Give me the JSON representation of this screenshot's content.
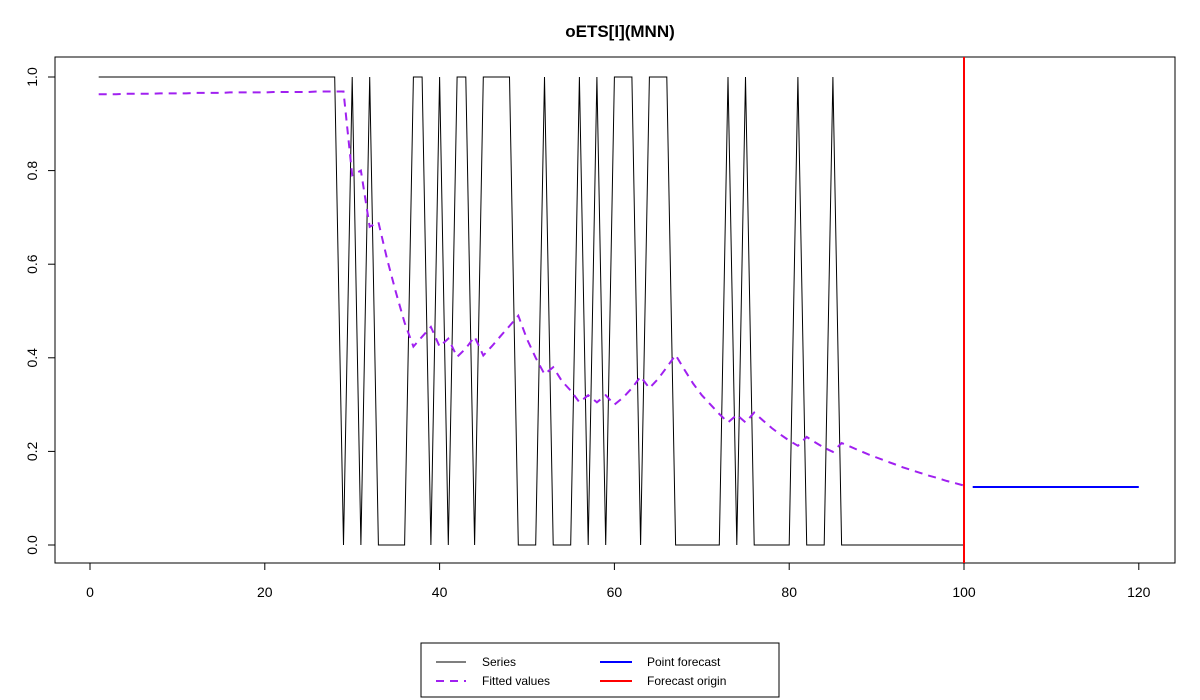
{
  "chart_data": {
    "type": "line",
    "title": "oETS[I](MNN)",
    "xlabel": "",
    "ylabel": "",
    "xlim": [
      -1,
      126
    ],
    "ylim": [
      -0.02,
      1.02
    ],
    "x_ticks": [
      0,
      20,
      40,
      60,
      80,
      100,
      120
    ],
    "y_ticks": [
      0.0,
      0.2,
      0.4,
      0.6,
      0.8,
      1.0
    ],
    "x_tick_labels": [
      "0",
      "20",
      "40",
      "60",
      "80",
      "100",
      "120"
    ],
    "y_tick_labels": [
      "0.0",
      "0.2",
      "0.4",
      "0.6",
      "0.8",
      "1.0"
    ],
    "grid": false,
    "legend_position": "bottom-center",
    "series": [
      {
        "name": "Series",
        "color": "#000000",
        "style": "solid",
        "x_start": 1,
        "values": [
          1,
          1,
          1,
          1,
          1,
          1,
          1,
          1,
          1,
          1,
          1,
          1,
          1,
          1,
          1,
          1,
          1,
          1,
          1,
          1,
          1,
          1,
          1,
          1,
          1,
          1,
          1,
          1,
          0,
          1,
          0,
          1,
          0,
          0,
          0,
          0,
          1,
          1,
          0,
          1,
          0,
          1,
          1,
          0,
          1,
          1,
          1,
          1,
          0,
          0,
          0,
          1,
          0,
          0,
          0,
          1,
          0,
          1,
          0,
          1,
          1,
          1,
          0,
          1,
          1,
          1,
          0,
          0,
          0,
          0,
          0,
          0,
          1,
          0,
          1,
          0,
          0,
          0,
          0,
          0,
          1,
          0,
          0,
          0,
          1,
          0,
          0,
          0,
          0,
          0,
          0,
          0,
          0,
          0,
          0,
          0,
          0,
          0,
          0,
          0
        ]
      },
      {
        "name": "Fitted values",
        "color": "#a020f0",
        "style": "dashed",
        "x_start": 1,
        "values": [
          0.963,
          0.963,
          0.963,
          0.964,
          0.964,
          0.964,
          0.964,
          0.965,
          0.965,
          0.965,
          0.965,
          0.966,
          0.966,
          0.966,
          0.966,
          0.967,
          0.967,
          0.967,
          0.967,
          0.967,
          0.968,
          0.968,
          0.968,
          0.968,
          0.968,
          0.969,
          0.969,
          0.969,
          0.969,
          0.79,
          0.8,
          0.68,
          0.69,
          0.61,
          0.54,
          0.475,
          0.424,
          0.445,
          0.466,
          0.424,
          0.441,
          0.402,
          0.42,
          0.445,
          0.405,
          0.425,
          0.447,
          0.468,
          0.49,
          0.44,
          0.4,
          0.365,
          0.38,
          0.35,
          0.33,
          0.305,
          0.32,
          0.305,
          0.32,
          0.3,
          0.315,
          0.335,
          0.36,
          0.335,
          0.355,
          0.38,
          0.406,
          0.375,
          0.345,
          0.32,
          0.3,
          0.28,
          0.262,
          0.278,
          0.262,
          0.283,
          0.266,
          0.25,
          0.236,
          0.223,
          0.212,
          0.231,
          0.219,
          0.208,
          0.199,
          0.218,
          0.21,
          0.202,
          0.194,
          0.187,
          0.18,
          0.173,
          0.166,
          0.16,
          0.154,
          0.148,
          0.143,
          0.137,
          0.132,
          0.127
        ]
      },
      {
        "name": "Point forecast",
        "color": "#0000ff",
        "style": "solid",
        "x": [
          101,
          120
        ],
        "values": [
          0.124,
          0.124
        ]
      }
    ],
    "vlines": [
      {
        "name": "Forecast origin",
        "x": 100,
        "color": "#ff0000"
      }
    ],
    "legend": [
      {
        "label": "Series",
        "color": "#555555",
        "style": "solid"
      },
      {
        "label": "Fitted values",
        "color": "#a020f0",
        "style": "dashed"
      },
      {
        "label": "Point forecast",
        "color": "#0000ff",
        "style": "solid"
      },
      {
        "label": "Forecast origin",
        "color": "#ff0000",
        "style": "solid"
      }
    ]
  }
}
